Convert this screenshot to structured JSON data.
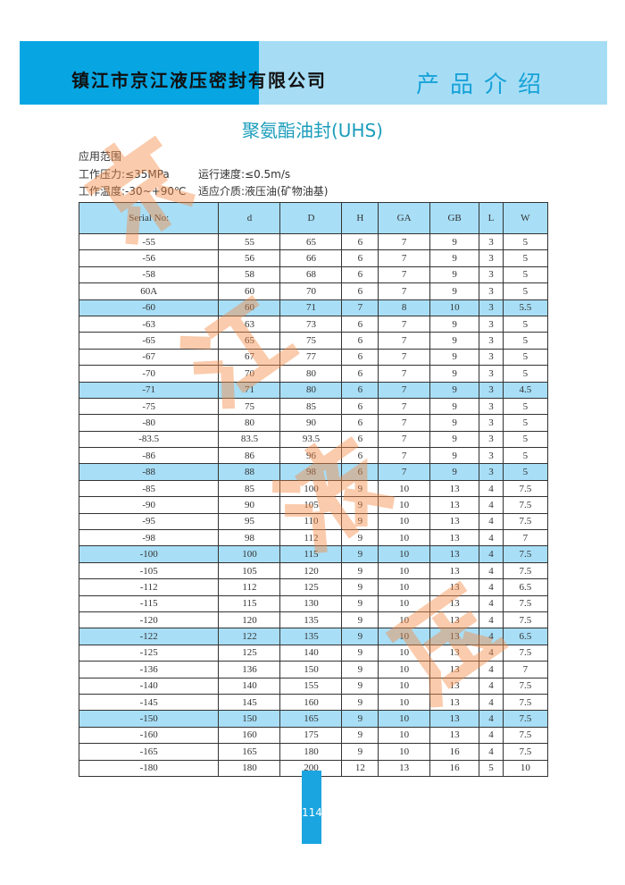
{
  "header": {
    "company": "镇江市京江液压密封有限公司",
    "section": "产品介绍",
    "colors": {
      "dark": "#07a6e3",
      "light": "#a6ddf5"
    }
  },
  "title": "聚氨酯油封(UHS)",
  "info": {
    "line1": "应用范围",
    "line2a": "工作压力:≤35MPa",
    "line2b": "运行速度:≤0.5m/s",
    "line3a": "工作温度:-30~+90℃",
    "line3b": "适应介质:液压油(矿物油基)"
  },
  "table": {
    "headers": [
      "Serial No:",
      "d",
      "D",
      "H",
      "GA",
      "GB",
      "L",
      "W"
    ],
    "rows": [
      [
        "-55",
        "55",
        "65",
        "6",
        "7",
        "9",
        "3",
        "5"
      ],
      [
        "-56",
        "56",
        "66",
        "6",
        "7",
        "9",
        "3",
        "5"
      ],
      [
        "-58",
        "58",
        "68",
        "6",
        "7",
        "9",
        "3",
        "5"
      ],
      [
        "60A",
        "60",
        "70",
        "6",
        "7",
        "9",
        "3",
        "5"
      ],
      [
        "-60",
        "60",
        "71",
        "7",
        "8",
        "10",
        "3",
        "5.5"
      ],
      [
        "-63",
        "63",
        "73",
        "6",
        "7",
        "9",
        "3",
        "5"
      ],
      [
        "-65",
        "65",
        "75",
        "6",
        "7",
        "9",
        "3",
        "5"
      ],
      [
        "-67",
        "67",
        "77",
        "6",
        "7",
        "9",
        "3",
        "5"
      ],
      [
        "-70",
        "70",
        "80",
        "6",
        "7",
        "9",
        "3",
        "5"
      ],
      [
        "-71",
        "71",
        "80",
        "6",
        "7",
        "9",
        "3",
        "4.5"
      ],
      [
        "-75",
        "75",
        "85",
        "6",
        "7",
        "9",
        "3",
        "5"
      ],
      [
        "-80",
        "80",
        "90",
        "6",
        "7",
        "9",
        "3",
        "5"
      ],
      [
        "-83.5",
        "83.5",
        "93.5",
        "6",
        "7",
        "9",
        "3",
        "5"
      ],
      [
        "-86",
        "86",
        "96",
        "6",
        "7",
        "9",
        "3",
        "5"
      ],
      [
        "-88",
        "88",
        "98",
        "6",
        "7",
        "9",
        "3",
        "5"
      ],
      [
        "-85",
        "85",
        "100",
        "9",
        "10",
        "13",
        "4",
        "7.5"
      ],
      [
        "-90",
        "90",
        "105",
        "9",
        "10",
        "13",
        "4",
        "7.5"
      ],
      [
        "-95",
        "95",
        "110",
        "9",
        "10",
        "13",
        "4",
        "7.5"
      ],
      [
        "-98",
        "98",
        "112",
        "9",
        "10",
        "13",
        "4",
        "7"
      ],
      [
        "-100",
        "100",
        "115",
        "9",
        "10",
        "13",
        "4",
        "7.5"
      ],
      [
        "-105",
        "105",
        "120",
        "9",
        "10",
        "13",
        "4",
        "7.5"
      ],
      [
        "-112",
        "112",
        "125",
        "9",
        "10",
        "13",
        "4",
        "6.5"
      ],
      [
        "-115",
        "115",
        "130",
        "9",
        "10",
        "13",
        "4",
        "7.5"
      ],
      [
        "-120",
        "120",
        "135",
        "9",
        "10",
        "13",
        "4",
        "7.5"
      ],
      [
        "-122",
        "122",
        "135",
        "9",
        "10",
        "13",
        "4",
        "6.5"
      ],
      [
        "-125",
        "125",
        "140",
        "9",
        "10",
        "13",
        "4",
        "7.5"
      ],
      [
        "-136",
        "136",
        "150",
        "9",
        "10",
        "13",
        "4",
        "7"
      ],
      [
        "-140",
        "140",
        "155",
        "9",
        "10",
        "13",
        "4",
        "7.5"
      ],
      [
        "-145",
        "145",
        "160",
        "9",
        "10",
        "13",
        "4",
        "7.5"
      ],
      [
        "-150",
        "150",
        "165",
        "9",
        "10",
        "13",
        "4",
        "7.5"
      ],
      [
        "-160",
        "160",
        "175",
        "9",
        "10",
        "13",
        "4",
        "7.5"
      ],
      [
        "-165",
        "165",
        "180",
        "9",
        "10",
        "16",
        "4",
        "7.5"
      ],
      [
        "-180",
        "180",
        "200",
        "12",
        "13",
        "16",
        "5",
        "10"
      ]
    ],
    "highlighted_rows": [
      4,
      9,
      14,
      19,
      24,
      29
    ]
  },
  "page_number": "114",
  "watermark": [
    "京",
    "江",
    "液",
    "压"
  ]
}
